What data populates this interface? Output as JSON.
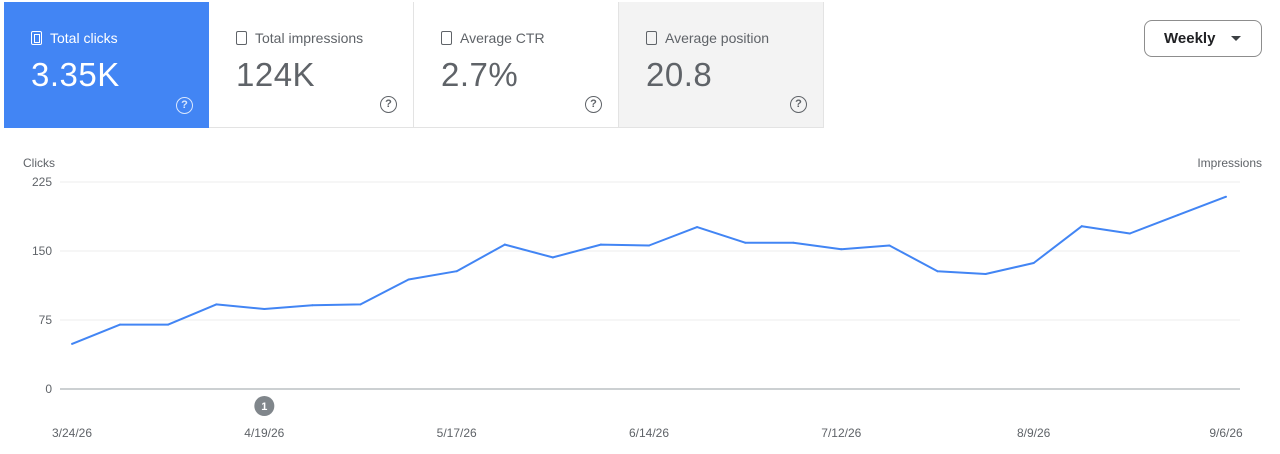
{
  "metrics": [
    {
      "label": "Total clicks",
      "value": "3.35K"
    },
    {
      "label": "Total impressions",
      "value": "124K"
    },
    {
      "label": "Average CTR",
      "value": "2.7%"
    },
    {
      "label": "Average position",
      "value": "20.8"
    }
  ],
  "help_symbol": "?",
  "period_selector": {
    "value": "Weekly"
  },
  "colors": {
    "selected": "#4285f4",
    "line": "#4285f4"
  },
  "chart_data": {
    "type": "line",
    "ylabel_left": "Clicks",
    "ylabel_right": "Impressions",
    "ylim": [
      0,
      225
    ],
    "y_ticks": [
      0,
      75,
      150,
      225
    ],
    "x_tick_labels": [
      "3/24/26",
      "4/19/26",
      "5/17/26",
      "6/14/26",
      "7/12/26",
      "8/9/26",
      "9/6/26"
    ],
    "series": [
      {
        "values": [
          49,
          70,
          70,
          92,
          87,
          91,
          92,
          119,
          128,
          157,
          143,
          157,
          156,
          176,
          159,
          159,
          152,
          156,
          128,
          125,
          137,
          177,
          169,
          189,
          209
        ]
      }
    ],
    "annotation": {
      "label": "1",
      "x_tick": "4/19/26"
    }
  }
}
